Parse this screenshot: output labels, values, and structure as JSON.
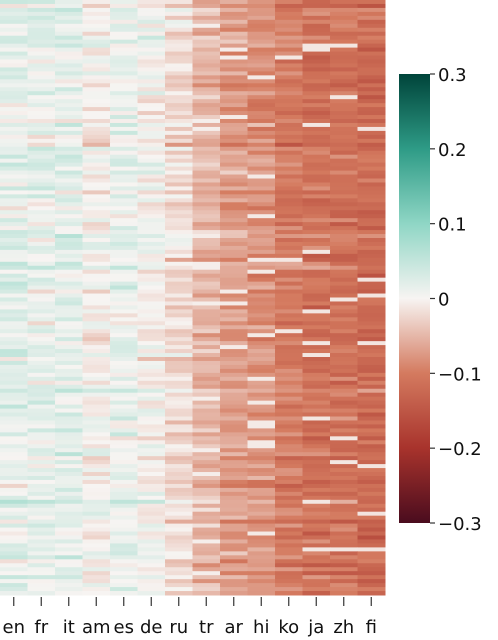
{
  "chart_data": {
    "type": "heatmap",
    "title": "",
    "xlabel": "",
    "ylabel": "",
    "columns": [
      "en",
      "fr",
      "it",
      "am",
      "es",
      "de",
      "ru",
      "tr",
      "ar",
      "hi",
      "ko",
      "ja",
      "zh",
      "fi"
    ],
    "column_means": [
      0.02,
      0.015,
      0.02,
      0.0,
      0.015,
      0.0,
      -0.02,
      -0.05,
      -0.07,
      -0.08,
      -0.1,
      -0.11,
      -0.11,
      -0.12
    ],
    "row_count": 150,
    "colorbar": {
      "ticks": [
        0.3,
        0.2,
        0.1,
        0,
        -0.1,
        -0.2,
        -0.3
      ],
      "tick_labels": [
        "0.3",
        "0.2",
        "0.1",
        "0",
        "−0.1",
        "−0.2",
        "−0.3"
      ],
      "vmin": -0.3,
      "vmax": 0.3
    },
    "colormap": {
      "stops": [
        {
          "value": -0.3,
          "color": "#4a0c1e"
        },
        {
          "value": -0.2,
          "color": "#a8332c"
        },
        {
          "value": -0.1,
          "color": "#d47a5f"
        },
        {
          "value": 0.0,
          "color": "#f7f4f2"
        },
        {
          "value": 0.1,
          "color": "#8fd6c5"
        },
        {
          "value": 0.2,
          "color": "#2e9b86"
        },
        {
          "value": 0.3,
          "color": "#00443a"
        }
      ]
    }
  }
}
